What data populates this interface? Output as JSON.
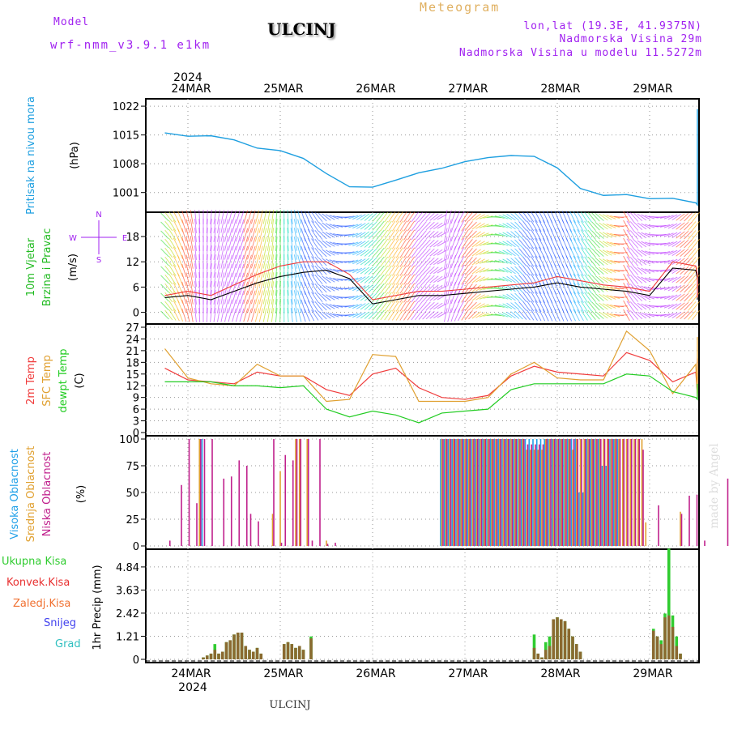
{
  "header": {
    "model_label": "Model",
    "model_name": "wrf-nmm_v3.9.1 e1km",
    "location": "ULCINJ",
    "product": "Meteogram",
    "lonlat": "lon,lat (19.3E, 41.9375N)",
    "elevation": "Nadmorska Visina 29m",
    "model_elevation": "Nadmorska Visina u modelu 11.5272m"
  },
  "footer": {
    "location": "ULCINJ",
    "credit": "made by Angel"
  },
  "colors": {
    "pressure": "#1e9fe0",
    "temp2m": "#f03c3c",
    "sfc": "#e0a030",
    "dew": "#22cc22",
    "high_cloud": "#20a0e8",
    "mid_cloud": "#e0a030",
    "low_cloud": "#c0208c",
    "total": "#30cc30",
    "konvek": "#e83030",
    "zaledj": "#f07030",
    "snow": "#4040ee",
    "grad": "#30c0c0",
    "wind_speed": "#000000"
  },
  "dates": {
    "year": "2024",
    "labels": [
      "24MAR",
      "25MAR",
      "26MAR",
      "27MAR",
      "28MAR",
      "29MAR"
    ]
  },
  "chart_data": [
    {
      "type": "line",
      "panel": "pressure",
      "ylabel": "Pritisak na nivou mora",
      "unit": "(hPa)",
      "yticks": [
        1001,
        1008,
        1015,
        1022
      ],
      "ylim": [
        997,
        1023
      ],
      "x_hours": [
        0,
        6,
        12,
        18,
        24,
        30,
        36,
        42,
        48,
        54,
        60,
        66,
        72,
        78,
        84,
        90,
        96,
        102,
        108,
        114,
        120,
        126,
        132,
        138,
        144,
        150,
        156,
        162,
        168,
        174
      ],
      "series": [
        {
          "values": [
            1015.5,
            1014.7,
            1014.8,
            1013.8,
            1011.8,
            1011.2,
            1009.3,
            1005.6,
            1002.4,
            1002.3,
            1004.0,
            1005.8,
            1006.9,
            1008.5,
            1009.5,
            1010.0,
            1009.8,
            1007.0,
            1002.0,
            1000.3,
            1000.5,
            999.5,
            999.6,
            998.5,
            998.0,
            1003.8,
            1008.2,
            1011.5,
            1014.2,
            1015.5
          ]
        },
        {
          "values": []
        }
      ],
      "series_extra": [
        1018.0,
        1019.8,
        1021.0,
        1021.3,
        1020.8
      ]
    },
    {
      "type": "line",
      "panel": "wind",
      "ylabel": "10m Vjetar Brzina i Pravac",
      "unit": "(m/s)",
      "compass": [
        "N",
        "S",
        "W",
        "E"
      ],
      "yticks": [
        0,
        6,
        12,
        18
      ],
      "ylim": [
        -2,
        23
      ],
      "x_hours": [
        0,
        6,
        12,
        18,
        24,
        30,
        36,
        42,
        48,
        54,
        60,
        66,
        72,
        78,
        84,
        90,
        96,
        102,
        108,
        114,
        120,
        126,
        132,
        138,
        144,
        150,
        156,
        162,
        168,
        174,
        180
      ],
      "series": [
        {
          "name": "speed",
          "values": [
            3.5,
            4.0,
            3.0,
            5.0,
            7.0,
            8.5,
            9.5,
            10.0,
            8.0,
            2.0,
            3.0,
            4.0,
            4.0,
            4.5,
            5.0,
            5.5,
            6.0,
            7.0,
            6.0,
            5.5,
            5.0,
            4.0,
            10.5,
            10.0,
            8.0,
            5.5,
            5.0,
            4.5,
            4.0,
            3.5,
            3.0
          ]
        },
        {
          "name": "gust",
          "values": [
            4.0,
            5.0,
            4.0,
            6.5,
            9.0,
            11.0,
            12.0,
            12.0,
            9.0,
            3.0,
            4.0,
            5.0,
            5.0,
            5.5,
            6.0,
            6.5,
            7.0,
            8.5,
            7.5,
            6.5,
            6.0,
            5.0,
            12.0,
            11.0,
            9.0,
            6.0,
            5.5,
            5.0,
            4.5,
            4.0,
            3.5
          ]
        }
      ]
    },
    {
      "type": "line",
      "panel": "temperature",
      "ylabel": [
        "2m Temp",
        "SFC Temp",
        "dewpt Temp"
      ],
      "unit": "(C)",
      "yticks": [
        0,
        3,
        6,
        9,
        12,
        15,
        18,
        21,
        24,
        27
      ],
      "ylim": [
        0,
        27
      ],
      "x_hours": [
        0,
        6,
        12,
        18,
        24,
        30,
        36,
        42,
        48,
        54,
        60,
        66,
        72,
        78,
        84,
        90,
        96,
        102,
        108,
        114,
        120,
        126,
        132,
        138,
        144,
        150,
        156,
        162,
        168,
        174,
        180
      ],
      "series": [
        {
          "name": "2m Temp",
          "values": [
            16.5,
            13.5,
            13.0,
            12.5,
            15.5,
            14.5,
            14.5,
            11.0,
            9.5,
            15.0,
            16.5,
            11.5,
            9.0,
            8.5,
            9.5,
            14.5,
            17.0,
            15.5,
            15.0,
            14.5,
            20.5,
            18.5,
            13.0,
            15.5,
            10.0,
            15.5,
            17.0,
            13.5,
            14.0,
            12.5,
            19.0
          ]
        },
        {
          "name": "SFC Temp",
          "values": [
            21.5,
            14.0,
            12.5,
            12.0,
            17.5,
            14.5,
            14.5,
            8.0,
            8.5,
            20.0,
            19.5,
            8.0,
            8.0,
            8.0,
            9.0,
            15.0,
            18.0,
            14.0,
            13.5,
            13.5,
            26.0,
            21.0,
            10.0,
            17.5,
            9.0,
            19.5,
            21.0,
            12.5,
            12.5,
            13.0,
            24.5
          ]
        },
        {
          "name": "dewpt Temp",
          "values": [
            13.0,
            13.0,
            13.0,
            12.0,
            12.0,
            11.5,
            12.0,
            6.0,
            4.0,
            5.5,
            4.5,
            2.5,
            5.0,
            5.5,
            6.0,
            11.0,
            12.5,
            12.5,
            12.5,
            12.5,
            15.0,
            14.5,
            10.5,
            9.0,
            8.5,
            10.0,
            11.0,
            11.5,
            11.5,
            12.0,
            12.5
          ]
        }
      ]
    },
    {
      "type": "bar",
      "panel": "clouds",
      "ylabel": [
        "Visoka Oblacnost",
        "Srednja Oblacnost",
        "Niska Oblacnost"
      ],
      "unit": "(%)",
      "yticks": [
        0,
        25,
        50,
        75,
        100
      ],
      "ylim": [
        0,
        100
      ],
      "hours": [
        1,
        4,
        6,
        8,
        9,
        10,
        12,
        15,
        17,
        19,
        21,
        22,
        24,
        28,
        30,
        31,
        33,
        34,
        35,
        37,
        38,
        40,
        42,
        44,
        52,
        57,
        62,
        67,
        72,
        73,
        74,
        75,
        76,
        77,
        78,
        79,
        80,
        81,
        82,
        83,
        84,
        85,
        86,
        87,
        88,
        89,
        90,
        91,
        92,
        93,
        94,
        95,
        96,
        97,
        98,
        99,
        100,
        101,
        102,
        103,
        104,
        105,
        106,
        107,
        108,
        109,
        110,
        111,
        112,
        113,
        114,
        115,
        116,
        117,
        118,
        119,
        120,
        121,
        122,
        123,
        124,
        125,
        126,
        128,
        130,
        134,
        136,
        138,
        139,
        140,
        142,
        146,
        154,
        156,
        162,
        167,
        170,
        172,
        174,
        176,
        178
      ],
      "series": [
        {
          "name": "Visoka Oblacnost",
          "values": [
            0,
            0,
            0,
            0,
            0,
            100,
            0,
            0,
            0,
            0,
            0,
            0,
            0,
            0,
            0,
            0,
            0,
            0,
            0,
            0,
            0,
            0,
            0,
            0,
            0,
            0,
            0,
            0,
            100,
            100,
            100,
            100,
            100,
            100,
            100,
            100,
            100,
            100,
            100,
            100,
            100,
            100,
            100,
            100,
            100,
            100,
            100,
            100,
            100,
            100,
            100,
            100,
            100,
            100,
            100,
            100,
            100,
            100,
            100,
            100,
            100,
            100,
            100,
            100,
            50,
            50,
            100,
            100,
            100,
            100,
            75,
            75,
            100,
            100,
            100,
            0,
            0,
            0,
            0,
            0,
            0,
            0,
            0,
            0,
            0,
            0,
            0,
            0,
            0,
            0,
            0,
            0,
            0,
            0,
            0,
            0,
            0,
            0,
            0,
            0,
            0
          ]
        },
        {
          "name": "Srednja Oblacnost",
          "values": [
            0,
            0,
            0,
            0,
            100,
            0,
            0,
            0,
            0,
            0,
            0,
            0,
            0,
            30,
            70,
            0,
            0,
            100,
            100,
            100,
            0,
            0,
            5,
            0,
            0,
            0,
            0,
            0,
            100,
            100,
            100,
            100,
            100,
            100,
            100,
            100,
            100,
            100,
            100,
            100,
            100,
            100,
            100,
            100,
            100,
            100,
            100,
            100,
            100,
            100,
            90,
            90,
            90,
            90,
            90,
            100,
            100,
            100,
            100,
            100,
            100,
            100,
            90,
            100,
            100,
            100,
            100,
            100,
            100,
            100,
            100,
            100,
            100,
            100,
            100,
            100,
            100,
            100,
            100,
            100,
            100,
            22,
            0,
            0,
            0,
            32,
            0,
            0,
            0,
            0,
            0,
            0,
            0,
            0,
            0,
            0,
            0,
            0,
            0,
            0,
            0
          ]
        },
        {
          "name": "Niska Oblacnost",
          "values": [
            5,
            57,
            100,
            40,
            100,
            100,
            100,
            63,
            65,
            80,
            75,
            30,
            23,
            100,
            3,
            85,
            80,
            100,
            100,
            100,
            5,
            100,
            2,
            3,
            0,
            0,
            0,
            0,
            100,
            100,
            100,
            100,
            100,
            100,
            100,
            100,
            100,
            100,
            100,
            100,
            100,
            100,
            100,
            100,
            100,
            100,
            100,
            100,
            100,
            100,
            95,
            95,
            95,
            95,
            95,
            100,
            100,
            100,
            100,
            100,
            100,
            100,
            100,
            100,
            100,
            100,
            100,
            100,
            100,
            100,
            100,
            100,
            100,
            100,
            100,
            100,
            100,
            100,
            100,
            100,
            90,
            0,
            0,
            38,
            0,
            30,
            47,
            48,
            0,
            5,
            0,
            63,
            67,
            85,
            100,
            100,
            0,
            98,
            0,
            17,
            17
          ]
        }
      ]
    },
    {
      "type": "bar",
      "panel": "precipitation",
      "ylabel": "1hr Precip (mm)",
      "legend": [
        "Ukupna Kisa",
        "Konvek.Kisa",
        "Zaledj.Kisa",
        "Snijeg",
        "Grad"
      ],
      "yticks": [
        0,
        1.21,
        2.42,
        3.63,
        4.84
      ],
      "ylim": [
        0,
        5.6
      ],
      "hours": [
        10,
        11,
        12,
        13,
        14,
        15,
        16,
        17,
        18,
        19,
        20,
        21,
        22,
        23,
        24,
        25,
        31,
        32,
        33,
        34,
        35,
        36,
        38,
        96,
        97,
        98,
        99,
        100,
        101,
        102,
        103,
        104,
        105,
        106,
        107,
        108,
        127,
        128,
        129,
        130,
        131,
        132,
        133,
        134,
        150,
        151,
        152,
        159,
        160
      ],
      "series": [
        {
          "name": "Ukupna Kisa",
          "values": [
            0.1,
            0.2,
            0.3,
            0.8,
            0.3,
            0.4,
            0.9,
            1.0,
            1.3,
            1.4,
            1.4,
            0.7,
            0.5,
            0.4,
            0.6,
            0.3,
            0.8,
            0.9,
            0.8,
            0.6,
            0.7,
            0.5,
            1.2,
            1.3,
            0.3,
            0.1,
            0.9,
            1.2,
            2.1,
            2.2,
            2.1,
            2.0,
            1.6,
            1.2,
            0.8,
            0.4,
            1.6,
            1.2,
            1.0,
            2.4,
            5.8,
            2.3,
            1.2,
            0.3,
            0.3,
            0.2,
            0.1,
            0.4,
            0.5
          ]
        },
        {
          "name": "Konvek.Kisa",
          "values": [
            0.1,
            0.2,
            0.3,
            0.5,
            0.3,
            0.4,
            0.9,
            1.0,
            1.3,
            1.4,
            1.4,
            0.7,
            0.5,
            0.4,
            0.6,
            0.3,
            0.8,
            0.9,
            0.8,
            0.6,
            0.7,
            0.5,
            1.1,
            0.6,
            0.3,
            0.1,
            0.5,
            0.7,
            2.1,
            2.2,
            2.1,
            2.0,
            1.6,
            1.2,
            0.8,
            0.4,
            1.5,
            1.2,
            0.8,
            2.2,
            2.3,
            1.7,
            0.7,
            0.3,
            0.3,
            0.2,
            0.1,
            0.4,
            0.5
          ]
        }
      ]
    }
  ]
}
